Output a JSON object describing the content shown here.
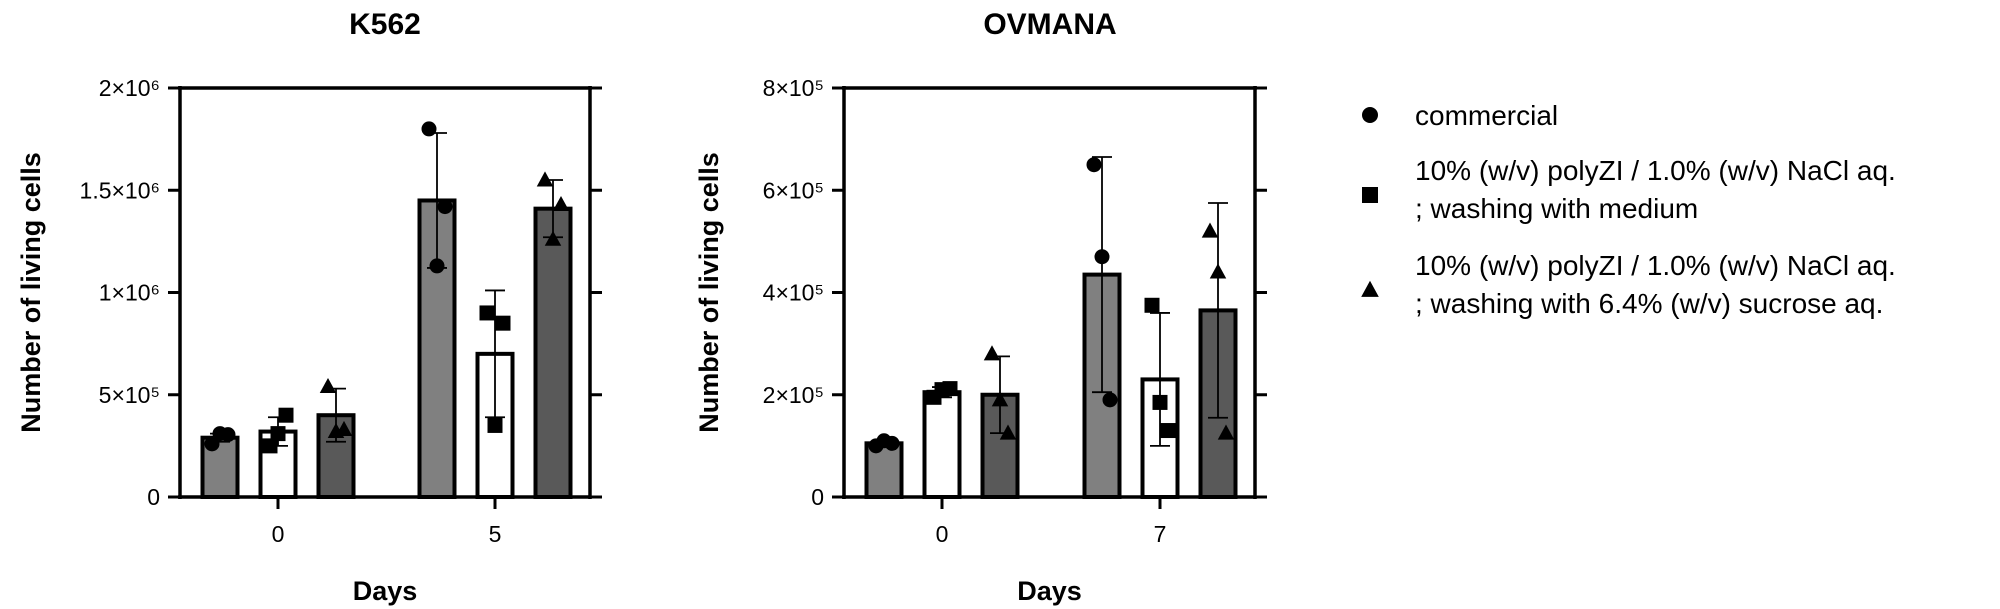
{
  "chart_data": [
    {
      "type": "bar",
      "title": "K562",
      "xlabel": "Days",
      "ylabel": "Number of living cells",
      "categories": [
        "0",
        "5"
      ],
      "ylim": [
        0,
        2000000
      ],
      "yticks": [
        {
          "value": 0,
          "label": "0"
        },
        {
          "value": 500000,
          "label": "5×10⁵"
        },
        {
          "value": 1000000,
          "label": "1×10⁶"
        },
        {
          "value": 1500000,
          "label": "1.5×10⁶"
        },
        {
          "value": 2000000,
          "label": "2×10⁶"
        }
      ],
      "grid": false,
      "series": [
        {
          "name": "commercial",
          "color": "#808080",
          "marker": "circle",
          "values": [
            290000,
            1450000
          ],
          "errors": [
            20000,
            330000
          ],
          "points": [
            [
              260000,
              310000,
              305000
            ],
            [
              1800000,
              1130000,
              1420000
            ]
          ]
        },
        {
          "name": "10% (w/v) polyZI / 1.0% (w/v) NaCl aq. ; washing with medium",
          "color": "#ffffff",
          "marker": "square",
          "values": [
            320000,
            700000
          ],
          "errors": [
            70000,
            310000
          ],
          "points": [
            [
              250000,
              310000,
              400000
            ],
            [
              900000,
              350000,
              850000
            ]
          ]
        },
        {
          "name": "10% (w/v) polyZI / 1.0% (w/v) NaCl aq. ; washing with 6.4% (w/v) sucrose aq.",
          "color": "#595959",
          "marker": "triangle",
          "values": [
            400000,
            1410000
          ],
          "errors": [
            130000,
            140000
          ],
          "points": [
            [
              540000,
              320000,
              330000
            ],
            [
              1550000,
              1260000,
              1430000
            ]
          ]
        }
      ]
    },
    {
      "type": "bar",
      "title": "OVMANA",
      "xlabel": "Days",
      "ylabel": "Number of living cells",
      "categories": [
        "0",
        "7"
      ],
      "ylim": [
        0,
        800000
      ],
      "yticks": [
        {
          "value": 0,
          "label": "0"
        },
        {
          "value": 200000,
          "label": "2×10⁵"
        },
        {
          "value": 400000,
          "label": "4×10⁵"
        },
        {
          "value": 600000,
          "label": "6×10⁵"
        },
        {
          "value": 800000,
          "label": "8×10⁵"
        }
      ],
      "grid": false,
      "series": [
        {
          "name": "commercial",
          "color": "#808080",
          "marker": "circle",
          "values": [
            105000,
            435000
          ],
          "errors": [
            5000,
            230000
          ],
          "points": [
            [
              100000,
              110000,
              105000
            ],
            [
              650000,
              470000,
              190000
            ]
          ]
        },
        {
          "name": "10% (w/v) polyZI / 1.0% (w/v) NaCl aq. ; washing with medium",
          "color": "#ffffff",
          "marker": "square",
          "values": [
            205000,
            230000
          ],
          "errors": [
            10000,
            130000
          ],
          "points": [
            [
              195000,
              210000,
              212000
            ],
            [
              375000,
              185000,
              130000
            ]
          ]
        },
        {
          "name": "10% (w/v) polyZI / 1.0% (w/v) NaCl aq. ; washing with 6.4% (w/v) sucrose aq.",
          "color": "#595959",
          "marker": "triangle",
          "values": [
            200000,
            365000
          ],
          "errors": [
            75000,
            210000
          ],
          "points": [
            [
              280000,
              190000,
              125000
            ],
            [
              520000,
              440000,
              125000
            ]
          ]
        }
      ]
    }
  ],
  "legend": {
    "placement": "right",
    "items": [
      {
        "marker": "circle",
        "lines": [
          "commercial"
        ]
      },
      {
        "marker": "square",
        "lines": [
          "10% (w/v) polyZI / 1.0% (w/v) NaCl aq.",
          "; washing with medium"
        ]
      },
      {
        "marker": "triangle",
        "lines": [
          "10% (w/v) polyZI / 1.0% (w/v) NaCl aq.",
          "; washing with 6.4% (w/v) sucrose aq."
        ]
      }
    ]
  }
}
